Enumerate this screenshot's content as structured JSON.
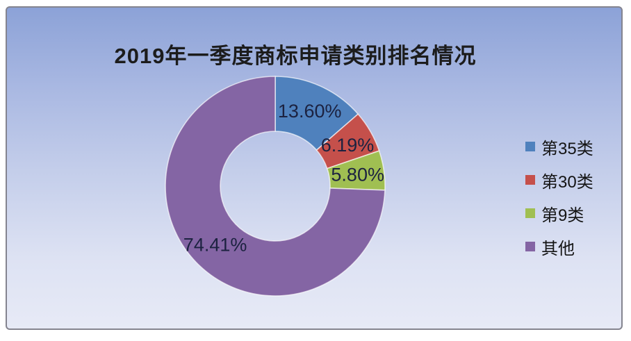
{
  "title": "2019年一季度商标申请类别排名情况",
  "panel": {
    "border_color": "#84848f",
    "background_gradient_top": "#8ca2d7",
    "background_gradient_bottom": "#e7eaf6"
  },
  "chart_data": {
    "type": "pie",
    "subtype": "donut",
    "title": "2019年一季度商标申请类别排名情况",
    "categories": [
      "第35类",
      "第30类",
      "第9类",
      "其他"
    ],
    "values": [
      13.6,
      6.19,
      5.8,
      74.41
    ],
    "labels": [
      "13.60%",
      "6.19%",
      "5.80%",
      "74.41%"
    ],
    "colors": [
      "#4f81bd",
      "#c5504b",
      "#a0bf52",
      "#8465a4"
    ],
    "start_angle_deg": 0,
    "direction": "clockwise",
    "hole_ratio": 0.5,
    "legend_position": "right",
    "data_label_color": "#1c2240",
    "slice_separator_color": "rgba(255,255,255,0.65)"
  },
  "legend": {
    "items": [
      {
        "label": "第35类",
        "color": "#4f81bd"
      },
      {
        "label": "第30类",
        "color": "#c5504b"
      },
      {
        "label": "第9类",
        "color": "#a0bf52"
      },
      {
        "label": "其他",
        "color": "#8465a4"
      }
    ]
  }
}
